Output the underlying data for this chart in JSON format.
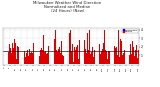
{
  "title": "Milwaukee Weather Wind Direction\nNormalized and Median\n(24 Hours) (New)",
  "title_fontsize": 2.8,
  "background_color": "#ffffff",
  "plot_bg_color": "#ffffff",
  "grid_color": "#bbbbbb",
  "bar_color": "#dd0000",
  "median_color": "#0000cc",
  "median_value": 1.5,
  "ylim": [
    -0.2,
    4.2
  ],
  "yticks": [
    1,
    2,
    3,
    4
  ],
  "ytick_labels": [
    "1",
    "2",
    "3",
    "4"
  ],
  "n_bars": 144,
  "bar_width": 0.7,
  "legend_labels": [
    "Normalized",
    "Median"
  ],
  "legend_colors": [
    "#0000cc",
    "#dd0000"
  ],
  "seed": 42
}
